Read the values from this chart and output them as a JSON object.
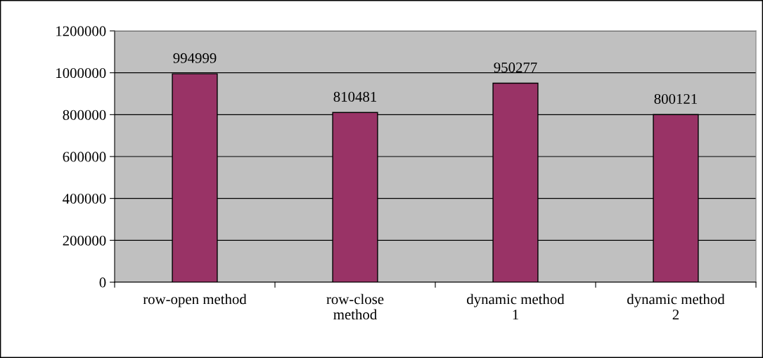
{
  "chart_data": {
    "type": "bar",
    "categories": [
      "row-open method",
      "row-close\nmethod",
      "dynamic method\n1",
      "dynamic method\n2"
    ],
    "values": [
      994999,
      810481,
      950277,
      800121
    ],
    "color": "#993366",
    "ylim": [
      0,
      1200000
    ],
    "yticks": [
      0,
      200000,
      400000,
      600000,
      800000,
      1000000,
      1200000
    ],
    "grid": "y",
    "data_labels": true
  }
}
